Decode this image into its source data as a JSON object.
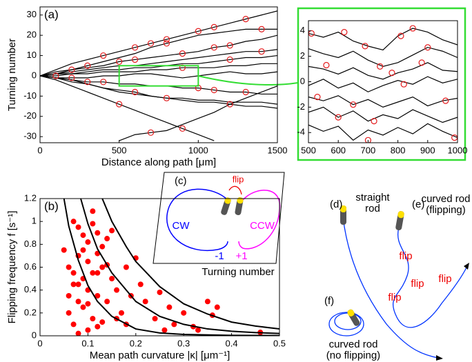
{
  "chart_data": [
    {
      "type": "line",
      "panel": "(a)",
      "xlabel": "Distance along path [μm]",
      "ylabel": "Turning number",
      "x": [
        0,
        100,
        200,
        300,
        400,
        500,
        600,
        700,
        800,
        900,
        1000,
        1100,
        1200,
        1300,
        1400,
        1500
      ],
      "series": [
        {
          "color": "#000000",
          "values": [
            0,
            3,
            6,
            8,
            10,
            12,
            14,
            16,
            18,
            20,
            22,
            24,
            26,
            28,
            30,
            32
          ]
        },
        {
          "color": "#000000",
          "values": [
            0,
            1,
            3,
            5,
            7,
            9,
            11,
            14,
            16,
            18,
            20,
            21,
            22,
            23,
            23,
            23
          ]
        },
        {
          "color": "#000000",
          "values": [
            0,
            2,
            3,
            4,
            5,
            7,
            8,
            9,
            10,
            11,
            12,
            14,
            15,
            17,
            18,
            20
          ]
        },
        {
          "color": "#000000",
          "values": [
            0,
            1,
            2,
            3,
            4,
            5,
            5,
            6,
            7,
            8,
            9,
            10,
            11,
            12,
            12,
            13
          ]
        },
        {
          "color": "#000000",
          "values": [
            0,
            1,
            1,
            2,
            3,
            3,
            4,
            4,
            5,
            6,
            6,
            7,
            8,
            9,
            9,
            10
          ]
        },
        {
          "color": "#000000",
          "values": [
            0,
            0,
            1,
            1,
            2,
            2,
            2,
            3,
            3,
            4,
            4,
            4,
            5,
            5,
            6,
            6
          ]
        },
        {
          "color": "#000000",
          "values": [
            0,
            -1,
            -1,
            -1,
            0,
            0,
            1,
            1,
            0,
            -1,
            0,
            1,
            2,
            1,
            1,
            2
          ]
        },
        {
          "color": "#000000",
          "values": [
            0,
            -1,
            -2,
            -3,
            -3,
            -4,
            -4,
            -5,
            -5,
            -6,
            -6,
            -7,
            -8,
            -8,
            -9,
            -9
          ]
        },
        {
          "color": "#000000",
          "values": [
            0,
            -1,
            -3,
            -4,
            -6,
            -7,
            -8,
            -10,
            -11,
            -12,
            -13,
            -13,
            -14,
            -15,
            -15,
            -16
          ]
        },
        {
          "color": "#000000",
          "values": [
            0,
            -2,
            -5,
            -8,
            -11,
            -14,
            -17,
            -20,
            -23,
            -26,
            -29,
            -32,
            null,
            null,
            null,
            null
          ]
        },
        {
          "color": "#000000",
          "values": [
            null,
            null,
            null,
            null,
            null,
            -32,
            -29,
            -28,
            -27,
            -24,
            -21,
            -18,
            -14,
            -11,
            -8,
            -5
          ]
        },
        {
          "color": "#000000",
          "values": [
            0,
            -1,
            -2,
            -4,
            -6,
            -8,
            -9,
            -10,
            -11,
            -11,
            -12,
            -12,
            -13,
            -13,
            -13,
            -14
          ]
        }
      ],
      "events": {
        "color": "#e41a1c",
        "x": [
          100,
          200,
          300,
          400,
          500,
          600,
          700,
          800,
          900,
          1000,
          1100,
          1200,
          1300,
          1400,
          200,
          400,
          600,
          800,
          1000,
          1200,
          300,
          500,
          700,
          900,
          1100,
          1300,
          600,
          800,
          1100,
          1400,
          900,
          1200
        ],
        "y": [
          0,
          3,
          5,
          10,
          7,
          8,
          16,
          16,
          4,
          22,
          24,
          15,
          28,
          12,
          -1,
          -3,
          -8,
          -11,
          -6,
          -14,
          -3,
          -14,
          -28,
          -26,
          -7,
          -8,
          14,
          18,
          14,
          23,
          11,
          8
        ]
      },
      "zoom_box": {
        "xlim": [
          500,
          1000
        ],
        "ylim": [
          -5,
          5
        ],
        "color": "#33dd33"
      },
      "xlim": [
        0,
        1500
      ],
      "ylim": [
        -33,
        34
      ],
      "xticks": [
        0,
        500,
        1000,
        1500
      ],
      "yticks": [
        -30,
        -20,
        -10,
        0,
        10,
        20,
        30
      ]
    },
    {
      "type": "line",
      "border_color": "#33dd33",
      "x": [
        500,
        550,
        600,
        650,
        700,
        750,
        800,
        850,
        900,
        950,
        1000
      ],
      "series": [
        {
          "color": "#000000",
          "values": [
            3.8,
            3.5,
            3.9,
            3.2,
            2.8,
            2.5,
            3.6,
            4.2,
            3.9,
            3.3,
            2.9
          ]
        },
        {
          "color": "#000000",
          "values": [
            2.6,
            2.2,
            1.9,
            2.4,
            1.7,
            1.2,
            1.5,
            2.1,
            2.7,
            2.4,
            1.9
          ]
        },
        {
          "color": "#000000",
          "values": [
            1.2,
            1.0,
            0.6,
            1.1,
            0.5,
            0.2,
            0.7,
            1.0,
            1.5,
            0.9,
            0.8
          ]
        },
        {
          "color": "#000000",
          "values": [
            -0.3,
            0.2,
            -0.5,
            -0.1,
            -0.8,
            -0.3,
            0.1,
            -0.2,
            0.4,
            -0.1,
            0.2
          ]
        },
        {
          "color": "#000000",
          "values": [
            -1.2,
            -1.5,
            -1.1,
            -1.8,
            -1.4,
            -2.0,
            -1.6,
            -1.2,
            -1.9,
            -1.5,
            -1.3
          ]
        },
        {
          "color": "#000000",
          "values": [
            -2.4,
            -2.0,
            -2.8,
            -2.3,
            -3.1,
            -2.6,
            -2.9,
            -2.2,
            -2.7,
            -3.2,
            -2.8
          ]
        },
        {
          "color": "#000000",
          "values": [
            -3.4,
            -3.9,
            -3.5,
            -4.6,
            -3.8,
            -4.2,
            -3.6,
            -4.1,
            -3.3,
            -3.9,
            -4.4
          ]
        }
      ],
      "events": {
        "color": "#e41a1c",
        "x": [
          510,
          560,
          620,
          690,
          740,
          780,
          850,
          900,
          960,
          530,
          650,
          720,
          820,
          880,
          990,
          600,
          700,
          810
        ],
        "y": [
          3.8,
          1.3,
          3.9,
          2.8,
          1.2,
          0.7,
          4.2,
          2.7,
          -1.5,
          -1.2,
          -1.8,
          -3.1,
          -0.2,
          1.5,
          -4.4,
          -2.8,
          -4.6,
          3.6
        ]
      },
      "xlim": [
        500,
        1000
      ],
      "ylim": [
        -4.8,
        4.8
      ],
      "xticks": [
        500,
        600,
        700,
        800,
        900,
        1000
      ],
      "yticks": [
        -4,
        -2,
        0,
        2,
        4
      ]
    },
    {
      "type": "scatter",
      "panel": "(b)",
      "xlabel": "Mean path curvature |κ| [μm⁻¹]",
      "ylabel": "Flipping frequency f [s⁻¹]",
      "series": [
        {
          "mode": "markers",
          "color": "#ff0000",
          "x": [
            0.07,
            0.08,
            0.09,
            0.1,
            0.11,
            0.12,
            0.13,
            0.14,
            0.06,
            0.08,
            0.1,
            0.12,
            0.09,
            0.11,
            0.07,
            0.1,
            0.13,
            0.15,
            0.08,
            0.12,
            0.06,
            0.09,
            0.11,
            0.14,
            0.16,
            0.07,
            0.1,
            0.12,
            0.08,
            0.13,
            0.17,
            0.19,
            0.21,
            0.18,
            0.22,
            0.25,
            0.27,
            0.24,
            0.3,
            0.28,
            0.33,
            0.35,
            0.37,
            0.36,
            0.32,
            0.46,
            0.2,
            0.15,
            0.11,
            0.09,
            0.12,
            0.14,
            0.1,
            0.08,
            0.06,
            0.05,
            0.07,
            0.16,
            0.18,
            0.26
          ],
          "values": [
            1.0,
            0.95,
            0.88,
            0.82,
            1.09,
            0.9,
            0.78,
            0.85,
            0.6,
            0.7,
            0.65,
            0.72,
            0.5,
            0.55,
            0.45,
            0.4,
            0.6,
            0.5,
            0.3,
            0.35,
            0.2,
            0.25,
            0.15,
            0.3,
            0.4,
            0.1,
            0.05,
            0.08,
            0.02,
            0.12,
            0.2,
            0.35,
            0.45,
            0.6,
            0.3,
            0.38,
            0.25,
            0.15,
            0.2,
            0.1,
            0.05,
            0.3,
            0.25,
            0.18,
            0.08,
            0.03,
            0.68,
            0.92,
            0.98,
            0.75,
            0.55,
            0.62,
            0.28,
            0.45,
            0.35,
            0.75,
            0.55,
            0.15,
            0.1,
            0.05
          ]
        },
        {
          "mode": "line",
          "color": "#000000",
          "x": [
            0.05,
            0.06,
            0.08,
            0.1,
            0.12,
            0.15,
            0.2,
            0.25,
            0.3,
            0.4,
            0.5
          ],
          "values": [
            1.2,
            0.96,
            0.66,
            0.44,
            0.3,
            0.17,
            0.06,
            0.025,
            0.012,
            0.004,
            0.002
          ]
        },
        {
          "mode": "line",
          "color": "#000000",
          "x": [
            0.085,
            0.1,
            0.12,
            0.15,
            0.2,
            0.25,
            0.3,
            0.35,
            0.4,
            0.45,
            0.5
          ],
          "values": [
            1.2,
            0.98,
            0.76,
            0.55,
            0.3,
            0.17,
            0.1,
            0.06,
            0.04,
            0.028,
            0.02
          ]
        },
        {
          "mode": "line",
          "color": "#000000",
          "x": [
            0.13,
            0.15,
            0.18,
            0.2,
            0.25,
            0.3,
            0.35,
            0.4,
            0.45,
            0.5
          ],
          "values": [
            1.2,
            1.0,
            0.78,
            0.65,
            0.43,
            0.28,
            0.19,
            0.12,
            0.085,
            0.06
          ]
        }
      ],
      "xlim": [
        0,
        0.5
      ],
      "ylim": [
        0,
        1.2
      ],
      "xticks": [
        0,
        0.1,
        0.2,
        0.3,
        0.4,
        0.5
      ],
      "yticks": [
        0,
        0.2,
        0.4,
        0.6,
        0.8,
        1,
        1.2
      ]
    }
  ],
  "panels": {
    "c": {
      "label": "(c)",
      "flip": "flip",
      "cw": "CW",
      "ccw": "CCW",
      "minus": "-1",
      "plus": "+1",
      "caption": "Turning number"
    },
    "d": {
      "label": "(d)",
      "caption": [
        "straight",
        "rod"
      ]
    },
    "e": {
      "label": "(e)",
      "caption": [
        "curved rod",
        "(flipping)"
      ],
      "flips": [
        "flip",
        "flip",
        "flip",
        "flip"
      ]
    },
    "f": {
      "label": "(f)",
      "caption": [
        "curved rod",
        "(no flipping)"
      ]
    }
  }
}
